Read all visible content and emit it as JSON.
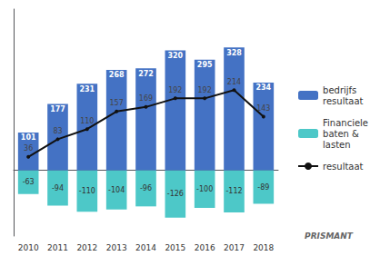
{
  "chart_data": {
    "type": "bar",
    "categories": [
      "2010",
      "2011",
      "2012",
      "2013",
      "2014",
      "2015",
      "2016",
      "2017",
      "2018"
    ],
    "series": [
      {
        "name": "bedrijfs\nresultaat",
        "type": "bar",
        "color": "#4472C4",
        "data_labels": true,
        "values": [
          101,
          177,
          231,
          268,
          272,
          320,
          295,
          328,
          234
        ]
      },
      {
        "name": "Financiele\nbaten &\nlasten",
        "type": "bar",
        "color": "#4DC8C8",
        "data_labels": true,
        "values": [
          -63,
          -94,
          -110,
          -104,
          -96,
          -126,
          -100,
          -112,
          -89
        ]
      },
      {
        "name": "resultaat",
        "type": "line",
        "color": "#111111",
        "data_labels": true,
        "values": [
          36,
          83,
          110,
          157,
          169,
          192,
          192,
          214,
          143
        ]
      }
    ],
    "ylim": [
      -175,
      430
    ],
    "tick_labels": "x",
    "grid": false,
    "legend": "right",
    "annotations": [
      "PRISMANT"
    ]
  }
}
